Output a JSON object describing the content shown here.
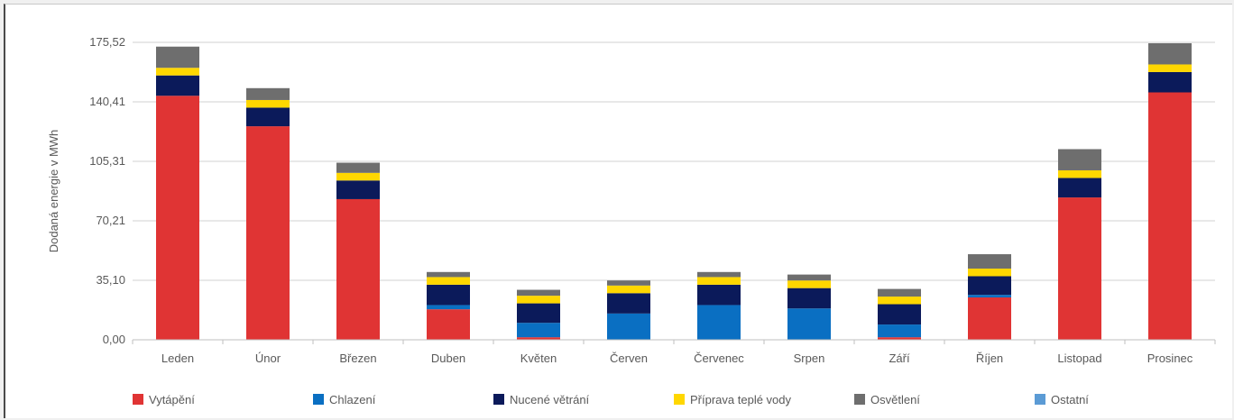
{
  "chart_data": {
    "type": "bar",
    "stacked": true,
    "ylabel": "Dodaná energie v MWh",
    "xlabel": "",
    "ylim": [
      0,
      175.52
    ],
    "yticks": [
      "0,00",
      "35,10",
      "70,21",
      "105,31",
      "140,41",
      "175,52"
    ],
    "ytick_values": [
      0,
      35.1,
      70.21,
      105.31,
      140.41,
      175.52
    ],
    "grid": true,
    "legend_position": "bottom",
    "categories": [
      "Leden",
      "Únor",
      "Březen",
      "Duben",
      "Květen",
      "Červen",
      "Červenec",
      "Srpen",
      "Září",
      "Říjen",
      "Listopad",
      "Prosinec"
    ],
    "series": [
      {
        "name": "Vytápění",
        "color": "#e03434",
        "values": [
          144.0,
          126.0,
          83.0,
          18.0,
          1.5,
          0.0,
          0.0,
          0.0,
          1.5,
          25.0,
          84.0,
          146.0
        ]
      },
      {
        "name": "Chlazení",
        "color": "#0a6fc2",
        "values": [
          0.0,
          0.0,
          0.0,
          2.5,
          8.5,
          15.5,
          20.5,
          18.5,
          7.5,
          1.5,
          0.0,
          0.0
        ]
      },
      {
        "name": "Nucené větrání",
        "color": "#0b1a5a",
        "values": [
          12.0,
          11.0,
          11.0,
          12.0,
          11.5,
          12.0,
          12.0,
          12.0,
          12.0,
          11.0,
          11.5,
          12.0
        ]
      },
      {
        "name": "Příprava teplé vody",
        "color": "#ffd700",
        "values": [
          4.5,
          4.5,
          4.5,
          4.5,
          4.5,
          4.5,
          4.5,
          4.5,
          4.5,
          4.5,
          4.5,
          4.5
        ]
      },
      {
        "name": "Osvětlení",
        "color": "#6e6e6e",
        "values": [
          12.5,
          7.0,
          6.0,
          3.0,
          3.5,
          3.0,
          3.0,
          3.5,
          4.5,
          8.5,
          12.5,
          12.5
        ]
      },
      {
        "name": "Ostatní",
        "color": "#5b9bd5",
        "values": [
          0,
          0,
          0,
          0,
          0,
          0,
          0,
          0,
          0,
          0,
          0,
          0
        ]
      }
    ]
  }
}
